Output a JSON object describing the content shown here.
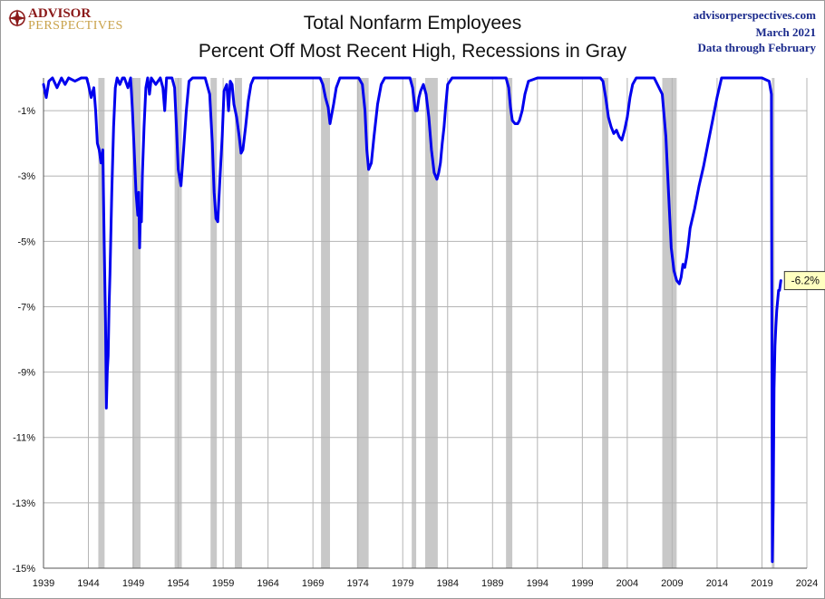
{
  "logo": {
    "line1": "ADVISOR",
    "line2": "PERSPECTIVES"
  },
  "header": {
    "title_line1": "Total Nonfarm Employees",
    "title_line2": "Percent Off Most Recent High, Recessions in Gray"
  },
  "credits": {
    "site": "advisorperspectives.com",
    "date": "March 2021",
    "note": "Data through February"
  },
  "chart_data": {
    "type": "line",
    "title": "Total Nonfarm Employees",
    "subtitle": "Percent Off Most Recent High, Recessions in Gray",
    "xlabel": "",
    "ylabel": "",
    "xlim": [
      1939,
      2024
    ],
    "ylim": [
      -15,
      0
    ],
    "x_ticks": [
      1939,
      1944,
      1949,
      1954,
      1959,
      1964,
      1969,
      1974,
      1979,
      1984,
      1989,
      1994,
      1999,
      2004,
      2009,
      2014,
      2019,
      2024
    ],
    "y_ticks": [
      -1,
      -3,
      -5,
      -7,
      -9,
      -11,
      -13,
      -15
    ],
    "y_tick_labels": [
      "-1%",
      "-3%",
      "-5%",
      "-7%",
      "-9%",
      "-11%",
      "-13%",
      "-15%"
    ],
    "grid": true,
    "line_color": "#0000ee",
    "recession_color": "#c8c8c8",
    "recessions": [
      [
        1945.1,
        1945.8
      ],
      [
        1948.9,
        1949.8
      ],
      [
        1953.6,
        1954.4
      ],
      [
        1957.6,
        1958.3
      ],
      [
        1960.3,
        1961.1
      ],
      [
        1969.9,
        1970.9
      ],
      [
        1973.9,
        1975.2
      ],
      [
        1980.0,
        1980.5
      ],
      [
        1981.5,
        1982.9
      ],
      [
        1990.5,
        1991.2
      ],
      [
        2001.2,
        2001.9
      ],
      [
        2007.9,
        2009.5
      ],
      [
        2020.1,
        2020.4
      ]
    ],
    "series": [
      {
        "x": [
          1939.0,
          1939.3,
          1939.6,
          1940.0,
          1940.5,
          1941.0,
          1941.4,
          1941.8,
          1942.5,
          1943.2,
          1943.8,
          1944.0,
          1944.3,
          1944.6,
          1944.8,
          1945.0,
          1945.2,
          1945.4,
          1945.6,
          1945.75,
          1945.9,
          1946.0,
          1946.1,
          1946.2,
          1946.3,
          1946.4,
          1946.6,
          1946.8,
          1947.0,
          1947.2,
          1947.5,
          1947.8,
          1948.0,
          1948.4,
          1948.7,
          1948.9,
          1949.1,
          1949.3,
          1949.5,
          1949.6,
          1949.7,
          1949.8,
          1949.9,
          1950.0,
          1950.2,
          1950.4,
          1950.6,
          1950.8,
          1951.0,
          1951.5,
          1952.0,
          1952.3,
          1952.5,
          1952.7,
          1953.0,
          1953.3,
          1953.6,
          1953.8,
          1954.0,
          1954.3,
          1954.6,
          1954.9,
          1955.2,
          1955.6,
          1956.0,
          1956.5,
          1957.0,
          1957.5,
          1957.8,
          1958.0,
          1958.2,
          1958.4,
          1958.6,
          1958.9,
          1959.1,
          1959.4,
          1959.6,
          1959.8,
          1960.0,
          1960.2,
          1960.5,
          1960.8,
          1961.0,
          1961.2,
          1961.5,
          1961.8,
          1962.1,
          1962.4,
          1963.0,
          1964.0,
          1965.0,
          1966.0,
          1967.0,
          1968.0,
          1969.0,
          1969.8,
          1970.1,
          1970.4,
          1970.7,
          1970.9,
          1971.1,
          1971.3,
          1971.6,
          1972.0,
          1973.0,
          1973.8,
          1974.1,
          1974.5,
          1974.8,
          1975.0,
          1975.2,
          1975.5,
          1975.8,
          1976.2,
          1976.6,
          1977.0,
          1978.0,
          1979.0,
          1979.8,
          1980.1,
          1980.4,
          1980.6,
          1980.8,
          1981.0,
          1981.3,
          1981.6,
          1981.9,
          1982.2,
          1982.5,
          1982.8,
          1983.0,
          1983.2,
          1983.4,
          1983.6,
          1983.8,
          1984.0,
          1984.5,
          1985.0,
          1986.0,
          1987.0,
          1988.0,
          1989.0,
          1990.0,
          1990.5,
          1990.8,
          1991.0,
          1991.2,
          1991.5,
          1991.8,
          1992.0,
          1992.3,
          1992.6,
          1993.0,
          1994.0,
          1995.0,
          1996.0,
          1997.0,
          1998.0,
          1999.0,
          2000.0,
          2000.5,
          2001.0,
          2001.3,
          2001.6,
          2001.9,
          2002.2,
          2002.5,
          2002.8,
          2003.1,
          2003.4,
          2003.7,
          2004.0,
          2004.3,
          2004.6,
          2005.0,
          2005.5,
          2006.0,
          2007.0,
          2007.9,
          2008.3,
          2008.6,
          2008.9,
          2009.2,
          2009.5,
          2009.8,
          2010.0,
          2010.2,
          2010.4,
          2010.6,
          2010.8,
          2011.0,
          2011.5,
          2012.0,
          2012.5,
          2013.0,
          2013.5,
          2014.0,
          2014.5,
          2015.0,
          2016.0,
          2017.0,
          2018.0,
          2019.0,
          2019.8,
          2020.05,
          2020.15,
          2020.25,
          2020.35,
          2020.45,
          2020.55,
          2020.65,
          2020.75,
          2020.85,
          2020.95,
          2021.05,
          2021.1
        ],
        "y": [
          -0.2,
          -0.6,
          -0.1,
          0.0,
          -0.3,
          0.0,
          -0.2,
          0.0,
          -0.1,
          0.0,
          0.0,
          -0.2,
          -0.6,
          -0.3,
          -1.0,
          -2.0,
          -2.2,
          -2.6,
          -2.2,
          -5.0,
          -7.5,
          -10.1,
          -9.0,
          -8.5,
          -7.0,
          -6.0,
          -3.5,
          -1.5,
          -0.3,
          0.0,
          -0.2,
          0.0,
          0.0,
          -0.3,
          0.0,
          -1.0,
          -2.2,
          -3.5,
          -4.2,
          -3.5,
          -5.2,
          -4.0,
          -4.4,
          -3.0,
          -1.5,
          -0.3,
          0.0,
          -0.5,
          0.0,
          -0.2,
          0.0,
          -0.3,
          -1.0,
          0.0,
          0.0,
          0.0,
          -0.3,
          -1.5,
          -2.8,
          -3.3,
          -2.2,
          -1.0,
          -0.1,
          0.0,
          0.0,
          0.0,
          0.0,
          -0.5,
          -2.0,
          -3.5,
          -4.3,
          -4.4,
          -3.3,
          -1.8,
          -0.4,
          -0.2,
          -1.0,
          -0.1,
          -0.2,
          -0.8,
          -1.2,
          -1.8,
          -2.3,
          -2.2,
          -1.5,
          -0.7,
          -0.2,
          0.0,
          0.0,
          0.0,
          0.0,
          0.0,
          0.0,
          0.0,
          0.0,
          0.0,
          -0.2,
          -0.6,
          -0.9,
          -1.4,
          -1.1,
          -0.8,
          -0.3,
          0.0,
          0.0,
          0.0,
          0.0,
          -0.2,
          -1.0,
          -2.2,
          -2.8,
          -2.6,
          -1.8,
          -0.8,
          -0.2,
          0.0,
          0.0,
          0.0,
          0.0,
          -0.3,
          -1.0,
          -1.0,
          -0.6,
          -0.4,
          -0.2,
          -0.5,
          -1.2,
          -2.2,
          -2.9,
          -3.1,
          -2.9,
          -2.6,
          -2.0,
          -1.5,
          -0.8,
          -0.2,
          0.0,
          0.0,
          0.0,
          0.0,
          0.0,
          0.0,
          0.0,
          0.0,
          -0.3,
          -0.9,
          -1.3,
          -1.4,
          -1.4,
          -1.3,
          -1.0,
          -0.5,
          -0.1,
          0.0,
          0.0,
          0.0,
          0.0,
          0.0,
          0.0,
          0.0,
          0.0,
          0.0,
          -0.1,
          -0.6,
          -1.2,
          -1.5,
          -1.7,
          -1.6,
          -1.8,
          -1.9,
          -1.6,
          -1.2,
          -0.6,
          -0.2,
          0.0,
          0.0,
          0.0,
          0.0,
          -0.5,
          -1.8,
          -3.5,
          -5.2,
          -5.9,
          -6.2,
          -6.3,
          -6.1,
          -5.7,
          -5.8,
          -5.5,
          -5.1,
          -4.6,
          -4.0,
          -3.3,
          -2.7,
          -2.0,
          -1.3,
          -0.6,
          0.0,
          0.0,
          0.0,
          0.0,
          0.0,
          0.0,
          -0.1,
          -0.5,
          -14.8,
          -13.0,
          -9.5,
          -8.2,
          -7.6,
          -7.1,
          -6.8,
          -6.5,
          -6.5,
          -6.3,
          -6.2
        ]
      }
    ],
    "callout": {
      "x": 2021.1,
      "y": -6.2,
      "label": "-6.2%"
    }
  }
}
